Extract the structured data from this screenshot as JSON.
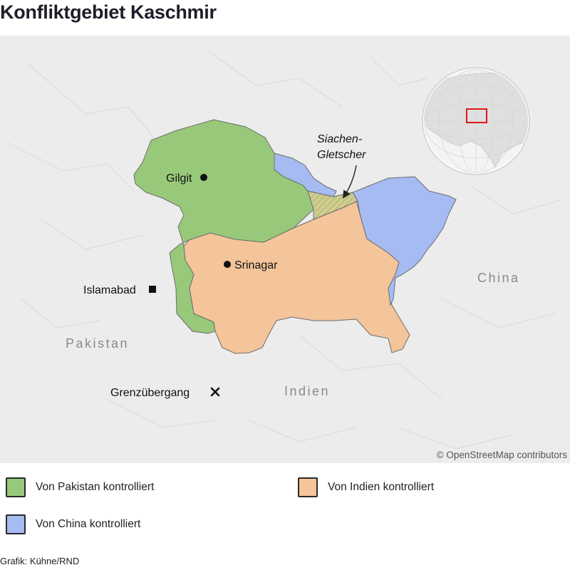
{
  "title": "Konfliktgebiet Kaschmir",
  "map": {
    "places": {
      "gilgit": "Gilgit",
      "srinagar": "Srinagar",
      "islamabad": "Islamabad",
      "border_crossing": "Grenzübergang"
    },
    "countries": {
      "pakistan": "Pakistan",
      "india": "Indien",
      "china": "China"
    },
    "glacier_label_line1": "Siachen-",
    "glacier_label_line2": "Gletscher",
    "attribution": "© OpenStreetMap contributors",
    "colors": {
      "pakistan": "#98c97a",
      "india": "#f4c49a",
      "china": "#a5bbf2",
      "background": "#ececec",
      "locator_marker": "#e01818"
    }
  },
  "legend": [
    {
      "label": "Von Pakistan kontrolliert",
      "color": "#98c97a"
    },
    {
      "label": "Von Indien kontrolliert",
      "color": "#f4c49a"
    },
    {
      "label": "Von China kontrolliert",
      "color": "#a5bbf2"
    }
  ],
  "credit": "Grafik: Kühne/RND"
}
